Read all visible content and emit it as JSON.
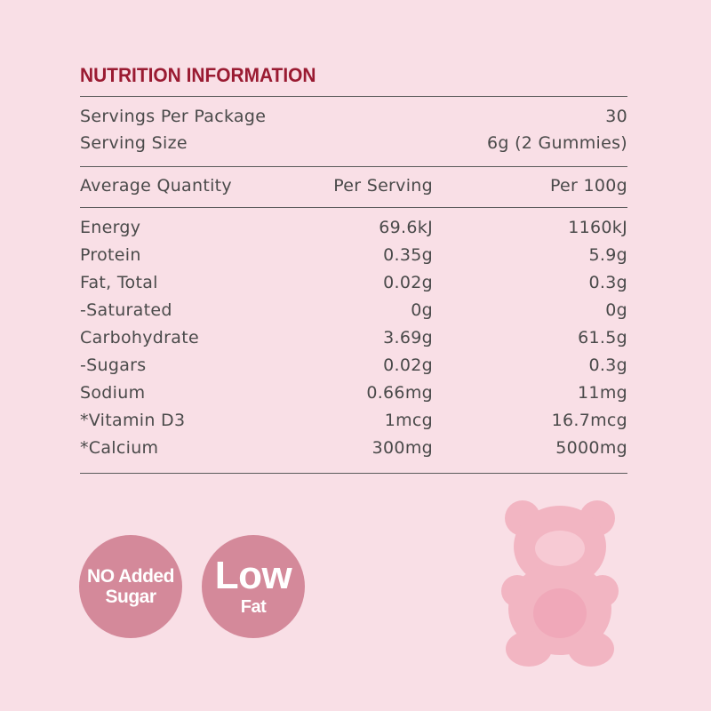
{
  "header": {
    "title": "NUTRITION INFORMATION"
  },
  "servings": [
    [
      "Servings Per Package",
      "30"
    ],
    [
      "Serving Size",
      "6g (2 Gummies)"
    ]
  ],
  "table": {
    "columns": [
      "Average Quantity",
      "Per Serving",
      "Per 100g"
    ],
    "rows": [
      [
        "Energy",
        "69.6kJ",
        "1160kJ"
      ],
      [
        "Protein",
        "0.35g",
        "5.9g"
      ],
      [
        "Fat, Total",
        "0.02g",
        "0.3g"
      ],
      [
        "-Saturated",
        "0g",
        "0g"
      ],
      [
        "Carbohydrate",
        "3.69g",
        "61.5g"
      ],
      [
        "-Sugars",
        "0.02g",
        "0.3g"
      ],
      [
        "Sodium",
        "0.66mg",
        "11mg"
      ],
      [
        "*Vitamin D3",
        "1mcg",
        "16.7mcg"
      ],
      [
        "*Calcium",
        "300mg",
        "5000mg"
      ]
    ]
  },
  "badges": [
    {
      "lines": [
        "NO Added",
        "Sugar"
      ]
    },
    {
      "lines": [
        "Low",
        "Fat"
      ]
    }
  ]
}
